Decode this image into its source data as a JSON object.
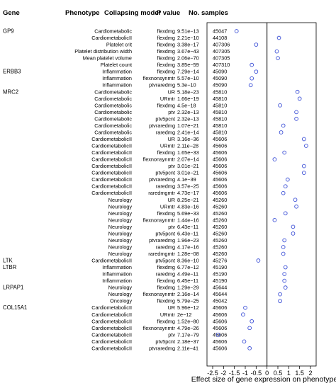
{
  "chart_data": {
    "type": "scatter",
    "title": "",
    "xlabel": "Effect size of gene expression on phenotype",
    "ylabel": "",
    "xlim": [
      -2.5,
      2.0
    ],
    "xticks": [
      -2.5,
      -2,
      -1.5,
      -1,
      -0.5,
      0,
      0.5,
      1,
      1.5,
      2
    ],
    "xtick_labels": [
      "-2.5",
      "-2",
      "-1.5",
      "-1",
      "-0.5",
      "0",
      "0.5",
      "1",
      "1.5",
      "2"
    ],
    "reference_line_x": 0,
    "grid": false,
    "marker_color": "#3b4fd6",
    "columns": [
      "Gene",
      "Phenotype",
      "Collapsing model",
      "P value",
      "No. samples"
    ],
    "rows": [
      {
        "gene": "GP9",
        "phenotype": "Cardiometabolic",
        "model": "flexdmg",
        "p": "9.51e−13",
        "n": "45047",
        "effect": -1.4
      },
      {
        "gene": "",
        "phenotype": "CardiometabolicII",
        "model": "flexdmg",
        "p": "2.21e−10",
        "n": "44108",
        "effect": 0.55
      },
      {
        "gene": "",
        "phenotype": "Platelet crit",
        "model": "flexdmg",
        "p": "3.38e−17",
        "n": "407306",
        "effect": -0.5
      },
      {
        "gene": "",
        "phenotype": "Platelet distribution width",
        "model": "flexdmg",
        "p": "3.67e−43",
        "n": "407305",
        "effect": 0.45
      },
      {
        "gene": "",
        "phenotype": "Mean platelet volume",
        "model": "flexdmg",
        "p": "2.06e−70",
        "n": "407305",
        "effect": 0.5
      },
      {
        "gene": "",
        "phenotype": "Platelet count",
        "model": "flexdmg",
        "p": "3.85e−59",
        "n": "407310",
        "effect": -0.7
      },
      {
        "gene": "ERBB3",
        "phenotype": "Inflammation",
        "model": "flexdmg",
        "p": "7.29e−14",
        "n": "45090",
        "effect": -0.5
      },
      {
        "gene": "",
        "phenotype": "Inflammation",
        "model": "flexnonsynmtr",
        "p": "5.57e−10",
        "n": "45090",
        "effect": -0.7
      },
      {
        "gene": "",
        "phenotype": "Inflammation",
        "model": "ptvraredmg",
        "p": "5.3e−10",
        "n": "45090",
        "effect": -0.75
      },
      {
        "gene": "MRC2",
        "phenotype": "Cardiometabolic",
        "model": "UR",
        "p": "5.18e−23",
        "n": "45810",
        "effect": 1.4
      },
      {
        "gene": "",
        "phenotype": "Cardiometabolic",
        "model": "URmtr",
        "p": "1.66e−19",
        "n": "45810",
        "effect": 1.5
      },
      {
        "gene": "",
        "phenotype": "Cardiometabolic",
        "model": "flexdmg",
        "p": "4.5e−18",
        "n": "45810",
        "effect": 0.6
      },
      {
        "gene": "",
        "phenotype": "Cardiometabolic",
        "model": "ptv",
        "p": "2.32e−13",
        "n": "45810",
        "effect": 1.35
      },
      {
        "gene": "",
        "phenotype": "Cardiometabolic",
        "model": "ptv5pcnt",
        "p": "2.32e−13",
        "n": "45810",
        "effect": 1.35
      },
      {
        "gene": "",
        "phenotype": "Cardiometabolic",
        "model": "ptvraredmg",
        "p": "1.07e−21",
        "n": "45810",
        "effect": 0.75
      },
      {
        "gene": "",
        "phenotype": "Cardiometabolic",
        "model": "raredmg",
        "p": "2.41e−14",
        "n": "45810",
        "effect": 0.65
      },
      {
        "gene": "",
        "phenotype": "CardiometabolicII",
        "model": "UR",
        "p": "3.16e−36",
        "n": "45606",
        "effect": 1.7
      },
      {
        "gene": "",
        "phenotype": "CardiometabolicII",
        "model": "URmtr",
        "p": "2.11e−28",
        "n": "45606",
        "effect": 1.8
      },
      {
        "gene": "",
        "phenotype": "CardiometabolicII",
        "model": "flexdmg",
        "p": "1.65e−33",
        "n": "45606",
        "effect": 0.8
      },
      {
        "gene": "",
        "phenotype": "CardiometabolicII",
        "model": "flexnonsynmtr",
        "p": "2.07e−14",
        "n": "45606",
        "effect": 0.35
      },
      {
        "gene": "",
        "phenotype": "CardiometabolicII",
        "model": "ptv",
        "p": "3.01e−21",
        "n": "45606",
        "effect": 1.7
      },
      {
        "gene": "",
        "phenotype": "CardiometabolicII",
        "model": "ptv5pcnt",
        "p": "3.01e−21",
        "n": "45606",
        "effect": 1.7
      },
      {
        "gene": "",
        "phenotype": "CardiometabolicII",
        "model": "ptvraredmg",
        "p": "4.1e−39",
        "n": "45606",
        "effect": 0.95
      },
      {
        "gene": "",
        "phenotype": "CardiometabolicII",
        "model": "raredmg",
        "p": "3.57e−25",
        "n": "45606",
        "effect": 0.85
      },
      {
        "gene": "",
        "phenotype": "CardiometabolicII",
        "model": "raredmgmtr",
        "p": "4.73e−17",
        "n": "45606",
        "effect": 0.75
      },
      {
        "gene": "",
        "phenotype": "Neurology",
        "model": "UR",
        "p": "8.25e−21",
        "n": "45260",
        "effect": 1.3
      },
      {
        "gene": "",
        "phenotype": "Neurology",
        "model": "URmtr",
        "p": "4.83e−16",
        "n": "45260",
        "effect": 1.35
      },
      {
        "gene": "",
        "phenotype": "Neurology",
        "model": "flexdmg",
        "p": "5.69e−33",
        "n": "45260",
        "effect": 0.85
      },
      {
        "gene": "",
        "phenotype": "Neurology",
        "model": "flexnonsynmtr",
        "p": "1.44e−16",
        "n": "45260",
        "effect": 0.35
      },
      {
        "gene": "",
        "phenotype": "Neurology",
        "model": "ptv",
        "p": "6.43e−11",
        "n": "45260",
        "effect": 1.2
      },
      {
        "gene": "",
        "phenotype": "Neurology",
        "model": "ptv5pcnt",
        "p": "6.43e−11",
        "n": "45260",
        "effect": 1.2
      },
      {
        "gene": "",
        "phenotype": "Neurology",
        "model": "ptvraredmg",
        "p": "1.96e−23",
        "n": "45260",
        "effect": 0.8
      },
      {
        "gene": "",
        "phenotype": "Neurology",
        "model": "raredmg",
        "p": "4.17e−16",
        "n": "45260",
        "effect": 0.75
      },
      {
        "gene": "",
        "phenotype": "Neurology",
        "model": "raredmgmtr",
        "p": "1.28e−08",
        "n": "45260",
        "effect": 0.75
      },
      {
        "gene": "LTK",
        "phenotype": "CardiometabolicII",
        "model": "ptv5pcnt",
        "p": "8.36e−10",
        "n": "45276",
        "effect": -0.4
      },
      {
        "gene": "LTBR",
        "phenotype": "Inflammation",
        "model": "flexdmg",
        "p": "6.77e−12",
        "n": "45190",
        "effect": 0.85
      },
      {
        "gene": "",
        "phenotype": "Inflammation",
        "model": "raredmg",
        "p": "4.49e−11",
        "n": "45190",
        "effect": 0.8
      },
      {
        "gene": "",
        "phenotype": "Inflammation",
        "model": "flexdmg",
        "p": "6.45e−11",
        "n": "45190",
        "effect": 0.8
      },
      {
        "gene": "LRPAP1",
        "phenotype": "Neurology",
        "model": "flexdmg",
        "p": "1.29e−29",
        "n": "45644",
        "effect": 0.85
      },
      {
        "gene": "",
        "phenotype": "Neurology",
        "model": "flexnonsynmtr",
        "p": "2.16e−14",
        "n": "45644",
        "effect": 0.6
      },
      {
        "gene": "",
        "phenotype": "Oncology",
        "model": "flexdmg",
        "p": "5.79e−25",
        "n": "45042",
        "effect": 0.6
      },
      {
        "gene": "COL15A1",
        "phenotype": "CardiometabolicII",
        "model": "UR",
        "p": "5.96e−12",
        "n": "45606",
        "effect": -1.0
      },
      {
        "gene": "",
        "phenotype": "CardiometabolicII",
        "model": "URmtr",
        "p": "2e−12",
        "n": "45606",
        "effect": -1.1
      },
      {
        "gene": "",
        "phenotype": "CardiometabolicII",
        "model": "flexdmg",
        "p": "1.52e−80",
        "n": "45606",
        "effect": -0.7
      },
      {
        "gene": "",
        "phenotype": "CardiometabolicII",
        "model": "flexnonsynmtr",
        "p": "4.79e−26",
        "n": "45606",
        "effect": -0.8
      },
      {
        "gene": "",
        "phenotype": "CardiometabolicII",
        "model": "ptv",
        "p": "7.17e−79",
        "n": "45606",
        "effect": -2.25
      },
      {
        "gene": "",
        "phenotype": "CardiometabolicII",
        "model": "ptv5pcnt",
        "p": "2.18e−37",
        "n": "45606",
        "effect": -1.05
      },
      {
        "gene": "",
        "phenotype": "CardiometabolicII",
        "model": "ptvraredmg",
        "p": "2.11e−41",
        "n": "45606",
        "effect": -0.8
      }
    ]
  }
}
